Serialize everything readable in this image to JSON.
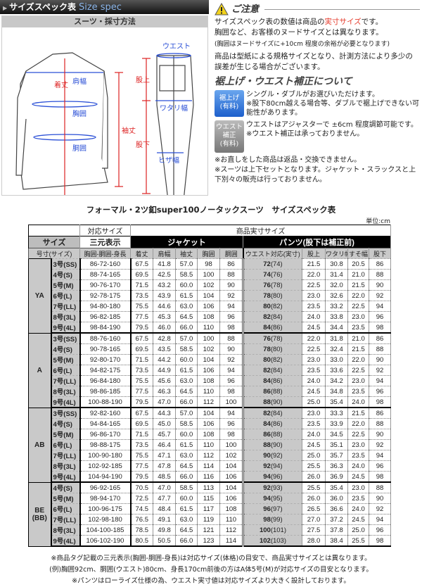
{
  "header": {
    "title_jp": "サイズスペック表",
    "title_en": "Size spec"
  },
  "diagram": {
    "title": "スーツ・採寸方法",
    "labels": {
      "shoulder": "肩幅",
      "length": "着丈",
      "chest": "胸囲",
      "waist": "胴囲",
      "sleeve": "袖丈",
      "pants_waist": "ウエスト",
      "rise": "股上",
      "thigh": "ワタリ幅",
      "inseam": "股下",
      "knee": "ヒザ幅"
    }
  },
  "notice": {
    "title": "ご注意",
    "line1_a": "サイズスペック表の数値は商品の",
    "line1_red": "実寸サイズ",
    "line1_b": "です。",
    "line2": "胸囲など、お客様のヌードサイズとは異なります。",
    "line3": "(胸囲はヌードサイズに+10cm 程度の余裕が必要となります)",
    "line4": "商品は型紙による規格サイズとなり、計測方法により多少の誤差が生じる場合がございます。",
    "alter_title": "裾上げ・ウエスト補正について",
    "hem_badge": "裾上げ",
    "hem_badge_sub": "(有料)",
    "hem_text1": "シングル・ダブルがお選びいただけます。",
    "hem_text2": "※股下80cm越える場合等、ダブルで裾上げできない可能性があります。",
    "waist_badge": "ウエスト補正",
    "waist_badge_sub": "(有料)",
    "waist_text1": "ウエストはアジャスターで ±6cm 程度調節可能です。",
    "waist_text2": "※ウエスト補正は承っておりません。",
    "note1": "※お直しをした商品は返品・交換できません。",
    "note2": "※スーツは上下セットとなります。ジャケット・スラックスと上下別々の販売は行っておりません。"
  },
  "table": {
    "title": "フォーマル・2ツ釦super100ノータックスーツ　サイズスペック表",
    "unit": "単位:cm",
    "h_corresponding": "対応サイズ",
    "h_actual": "商品実寸サイズ",
    "h_size": "サイズ",
    "h_sangen": "三元表示",
    "h_jacket": "ジャケット",
    "h_pants": "パンツ(股下は補正前)",
    "columns": [
      "号寸(サイズ)",
      "胸囲-胴囲-身長",
      "着丈",
      "肩幅",
      "袖丈",
      "胸囲",
      "胴囲",
      "ウエスト対応(実寸)",
      "股上",
      "ワタリ幅",
      "すそ幅",
      "股下"
    ],
    "groups": [
      {
        "name": "YA",
        "rows": [
          [
            "3号(SS)",
            "86-72-160",
            "67.5",
            "41.8",
            "57.0",
            "98",
            "86",
            "72",
            "(74)",
            "21.5",
            "30.8",
            "20.5",
            "86"
          ],
          [
            "4号(S)",
            "88-74-165",
            "69.5",
            "42.5",
            "58.5",
            "100",
            "88",
            "74",
            "(76)",
            "22.0",
            "31.4",
            "21.0",
            "88"
          ],
          [
            "5号(M)",
            "90-76-170",
            "71.5",
            "43.2",
            "60.0",
            "102",
            "90",
            "76",
            "(78)",
            "22.5",
            "32.0",
            "21.5",
            "90"
          ],
          [
            "6号(L)",
            "92-78-175",
            "73.5",
            "43.9",
            "61.5",
            "104",
            "92",
            "78",
            "(80)",
            "23.0",
            "32.6",
            "22.0",
            "92"
          ],
          [
            "7号(LL)",
            "94-80-180",
            "75.5",
            "44.6",
            "63.0",
            "106",
            "94",
            "80",
            "(82)",
            "23.5",
            "33.2",
            "22.5",
            "94"
          ],
          [
            "8号(3L)",
            "96-82-185",
            "77.5",
            "45.3",
            "64.5",
            "108",
            "96",
            "82",
            "(84)",
            "24.0",
            "33.8",
            "23.0",
            "96"
          ],
          [
            "9号(4L)",
            "98-84-190",
            "79.5",
            "46.0",
            "66.0",
            "110",
            "98",
            "84",
            "(86)",
            "24.5",
            "34.4",
            "23.5",
            "98"
          ]
        ]
      },
      {
        "name": "A",
        "rows": [
          [
            "3号(SS)",
            "88-76-160",
            "67.5",
            "42.8",
            "57.0",
            "100",
            "88",
            "76",
            "(78)",
            "22.0",
            "31.8",
            "21.0",
            "86"
          ],
          [
            "4号(S)",
            "90-78-165",
            "69.5",
            "43.5",
            "58.5",
            "102",
            "90",
            "78",
            "(80)",
            "22.5",
            "32.4",
            "21.5",
            "88"
          ],
          [
            "5号(M)",
            "92-80-170",
            "71.5",
            "44.2",
            "60.0",
            "104",
            "92",
            "80",
            "(82)",
            "23.0",
            "33.0",
            "22.0",
            "90"
          ],
          [
            "6号(L)",
            "94-82-175",
            "73.5",
            "44.9",
            "61.5",
            "106",
            "94",
            "82",
            "(84)",
            "23.5",
            "33.6",
            "22.5",
            "92"
          ],
          [
            "7号(LL)",
            "96-84-180",
            "75.5",
            "45.6",
            "63.0",
            "108",
            "96",
            "84",
            "(86)",
            "24.0",
            "34.2",
            "23.0",
            "94"
          ],
          [
            "8号(3L)",
            "98-86-185",
            "77.5",
            "46.3",
            "64.5",
            "110",
            "98",
            "86",
            "(88)",
            "24.5",
            "34.8",
            "23.5",
            "96"
          ],
          [
            "9号(4L)",
            "100-88-190",
            "79.5",
            "47.0",
            "66.0",
            "112",
            "100",
            "88",
            "(90)",
            "25.0",
            "35.4",
            "24.0",
            "98"
          ]
        ]
      },
      {
        "name": "AB",
        "rows": [
          [
            "3号(SS)",
            "92-82-160",
            "67.5",
            "44.3",
            "57.0",
            "104",
            "94",
            "82",
            "(84)",
            "23.0",
            "33.3",
            "21.5",
            "86"
          ],
          [
            "4号(S)",
            "94-84-165",
            "69.5",
            "45.0",
            "58.5",
            "106",
            "96",
            "84",
            "(86)",
            "23.5",
            "33.9",
            "22.0",
            "88"
          ],
          [
            "5号(M)",
            "96-86-170",
            "71.5",
            "45.7",
            "60.0",
            "108",
            "98",
            "86",
            "(88)",
            "24.0",
            "34.5",
            "22.5",
            "90"
          ],
          [
            "6号(L)",
            "98-88-175",
            "73.5",
            "46.4",
            "61.5",
            "110",
            "100",
            "88",
            "(90)",
            "24.5",
            "35.1",
            "23.0",
            "92"
          ],
          [
            "7号(LL)",
            "100-90-180",
            "75.5",
            "47.1",
            "63.0",
            "112",
            "102",
            "90",
            "(92)",
            "25.0",
            "35.7",
            "23.5",
            "94"
          ],
          [
            "8号(3L)",
            "102-92-185",
            "77.5",
            "47.8",
            "64.5",
            "114",
            "104",
            "92",
            "(94)",
            "25.5",
            "36.3",
            "24.0",
            "96"
          ],
          [
            "9号(4L)",
            "104-94-190",
            "79.5",
            "48.5",
            "66.0",
            "116",
            "106",
            "94",
            "(96)",
            "26.0",
            "36.9",
            "24.5",
            "98"
          ]
        ]
      },
      {
        "name": "BE\n(BB)",
        "rows": [
          [
            "4号(S)",
            "96-92-165",
            "70.5",
            "47.0",
            "58.5",
            "113",
            "104",
            "92",
            "(93)",
            "25.5",
            "35.4",
            "23.0",
            "88"
          ],
          [
            "5号(M)",
            "98-94-170",
            "72.5",
            "47.7",
            "60.0",
            "115",
            "106",
            "94",
            "(95)",
            "26.0",
            "36.0",
            "23.5",
            "90"
          ],
          [
            "6号(L)",
            "100-96-175",
            "74.5",
            "48.4",
            "61.5",
            "117",
            "108",
            "96",
            "(97)",
            "26.5",
            "36.6",
            "24.0",
            "92"
          ],
          [
            "7号(LL)",
            "102-98-180",
            "76.5",
            "49.1",
            "63.0",
            "119",
            "110",
            "98",
            "(99)",
            "27.0",
            "37.2",
            "24.5",
            "94"
          ],
          [
            "8号(3L)",
            "104-100-185",
            "78.5",
            "49.8",
            "64.5",
            "121",
            "112",
            "100",
            "(101)",
            "27.5",
            "37.8",
            "25.0",
            "96"
          ],
          [
            "9号(4L)",
            "106-102-190",
            "80.5",
            "50.5",
            "66.0",
            "123",
            "114",
            "102",
            "(103)",
            "28.0",
            "38.4",
            "25.5",
            "98"
          ]
        ]
      }
    ]
  },
  "footnotes": [
    "※商品タグ記載の三元表示(胸囲-胴囲-身長)は対応サイズ(体格)の目安で、商品実寸サイズとは異なります。",
    "(例)胸囲92cm、胴囲(ウエスト)80cm、身長170cm前後の方はA体5号(M)が対応サイズの目安となります。",
    "※パンツはローライズ仕様の為、ウエスト実寸値は対応サイズより大きく設計しております。"
  ],
  "colors": {
    "accent_red": "#e53b2c",
    "measure_blue": "#2a4fd6",
    "header_black": "#000000",
    "cell_gray": "#c9c9c9"
  }
}
